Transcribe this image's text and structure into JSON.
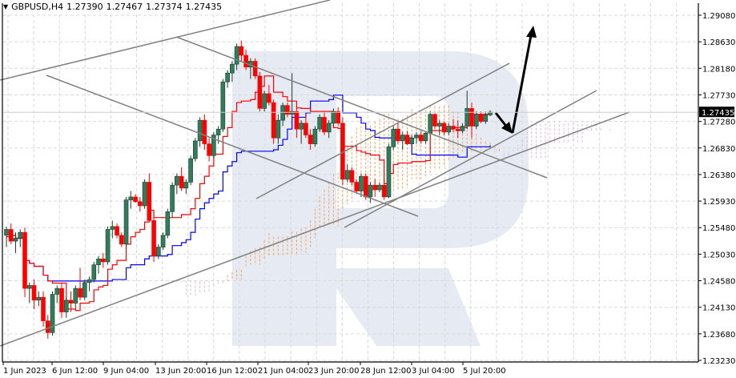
{
  "header": {
    "symbol": "GBPUSD,H4",
    "open": "1.27390",
    "high": "1.27467",
    "low": "1.27374",
    "close": "1.27435"
  },
  "colors": {
    "bull": "#2f7d5a",
    "bull_outline": "#1e3d30",
    "bear": "#ff0000",
    "tenkan": "#ff0000",
    "kijun": "#0000ff",
    "cloud_a": "#f4a460",
    "cloud_b": "#d8bfd8",
    "trendline": "#808080",
    "arrow": "#000000",
    "grid": "#d9d9d9",
    "watermark": "#e6ebf3",
    "current_price_bg": "#000000"
  },
  "chart_data": {
    "type": "candlestick",
    "title": "GBPUSD,H4",
    "subtitle": "1.27390 1.27467 1.27374 1.27435",
    "xlabel": "",
    "ylabel": "",
    "ylim": [
      1.2323,
      1.2908
    ],
    "grid": true,
    "y_ticks": [
      "1.29080",
      "1.28630",
      "1.28180",
      "1.27730",
      "1.27280",
      "1.26830",
      "1.26380",
      "1.25930",
      "1.25480",
      "1.25030",
      "1.24580",
      "1.24130",
      "1.23680",
      "1.23230"
    ],
    "x_ticks": [
      "1 Jun 2023",
      "6 Jun 12:00",
      "9 Jun 04:00",
      "13 Jun 20:00",
      "16 Jun 12:00",
      "21 Jun 04:00",
      "23 Jun 20:00",
      "28 Jun 12:00",
      "3 Jul 04:00",
      "5 Jul 20:00"
    ],
    "current_price": "1.27435",
    "indicators": [
      "Ichimoku Kinko Hyo (Tenkan-sen red, Kijun-sen blue, Kumo cloud)"
    ],
    "annotations": [
      "Ascending channel trendlines",
      "Descending channel trendlines",
      "Arrow down to cloud support ~1.2710",
      "Arrow up target ~1.2910"
    ],
    "candles": [
      [
        1.2535,
        1.255,
        1.2515,
        1.2545
      ],
      [
        1.2545,
        1.2555,
        1.252,
        1.2525
      ],
      [
        1.2525,
        1.254,
        1.2505,
        1.253
      ],
      [
        1.253,
        1.2545,
        1.2515,
        1.254
      ],
      [
        1.254,
        1.2548,
        1.243,
        1.2445
      ],
      [
        1.2445,
        1.2455,
        1.242,
        1.245
      ],
      [
        1.245,
        1.246,
        1.241,
        1.2425
      ],
      [
        1.2425,
        1.244,
        1.2415,
        1.243
      ],
      [
        1.243,
        1.244,
        1.238,
        1.239
      ],
      [
        1.239,
        1.24,
        1.236,
        1.237
      ],
      [
        1.237,
        1.244,
        1.2365,
        1.2435
      ],
      [
        1.2435,
        1.245,
        1.242,
        1.2445
      ],
      [
        1.2445,
        1.2455,
        1.2395,
        1.2405
      ],
      [
        1.2405,
        1.243,
        1.2395,
        1.2425
      ],
      [
        1.2425,
        1.244,
        1.2405,
        1.242
      ],
      [
        1.242,
        1.245,
        1.241,
        1.2445
      ],
      [
        1.2445,
        1.248,
        1.2425,
        1.243
      ],
      [
        1.243,
        1.246,
        1.2425,
        1.2455
      ],
      [
        1.2455,
        1.2465,
        1.244,
        1.246
      ],
      [
        1.246,
        1.249,
        1.2455,
        1.2485
      ],
      [
        1.2485,
        1.25,
        1.247,
        1.2495
      ],
      [
        1.2495,
        1.2505,
        1.248,
        1.249
      ],
      [
        1.249,
        1.255,
        1.2485,
        1.2545
      ],
      [
        1.2545,
        1.256,
        1.253,
        1.255
      ],
      [
        1.255,
        1.2555,
        1.253,
        1.2535
      ],
      [
        1.2535,
        1.254,
        1.2515,
        1.252
      ],
      [
        1.252,
        1.26,
        1.2515,
        1.2595
      ],
      [
        1.2595,
        1.261,
        1.258,
        1.26
      ],
      [
        1.26,
        1.2605,
        1.259,
        1.2592
      ],
      [
        1.2592,
        1.26,
        1.2575,
        1.2585
      ],
      [
        1.2585,
        1.263,
        1.258,
        1.2625
      ],
      [
        1.2625,
        1.264,
        1.2595,
        1.256
      ],
      [
        1.256,
        1.2575,
        1.249,
        1.25
      ],
      [
        1.25,
        1.252,
        1.2495,
        1.2515
      ],
      [
        1.2515,
        1.254,
        1.251,
        1.2535
      ],
      [
        1.2535,
        1.258,
        1.253,
        1.2575
      ],
      [
        1.2575,
        1.2625,
        1.2565,
        1.262
      ],
      [
        1.262,
        1.264,
        1.2605,
        1.2635
      ],
      [
        1.2635,
        1.265,
        1.261,
        1.2615
      ],
      [
        1.2615,
        1.263,
        1.2605,
        1.2625
      ],
      [
        1.2625,
        1.267,
        1.262,
        1.2665
      ],
      [
        1.2665,
        1.27,
        1.266,
        1.2695
      ],
      [
        1.2695,
        1.2735,
        1.2685,
        1.273
      ],
      [
        1.273,
        1.274,
        1.268,
        1.269
      ],
      [
        1.269,
        1.27,
        1.266,
        1.267
      ],
      [
        1.267,
        1.271,
        1.2665,
        1.2705
      ],
      [
        1.2705,
        1.272,
        1.269,
        1.2715
      ],
      [
        1.2715,
        1.28,
        1.271,
        1.2795
      ],
      [
        1.2795,
        1.2815,
        1.2785,
        1.281
      ],
      [
        1.281,
        1.283,
        1.2795,
        1.2825
      ],
      [
        1.2825,
        1.286,
        1.2815,
        1.2855
      ],
      [
        1.2855,
        1.2865,
        1.283,
        1.284
      ],
      [
        1.284,
        1.285,
        1.2815,
        1.282
      ],
      [
        1.282,
        1.2835,
        1.28,
        1.283
      ],
      [
        1.283,
        1.2835,
        1.28,
        1.2805
      ],
      [
        1.2805,
        1.2812,
        1.2745,
        1.275
      ],
      [
        1.275,
        1.278,
        1.2745,
        1.2775
      ],
      [
        1.2775,
        1.279,
        1.2755,
        1.276
      ],
      [
        1.276,
        1.2765,
        1.269,
        1.27
      ],
      [
        1.27,
        1.274,
        1.269,
        1.273
      ],
      [
        1.273,
        1.276,
        1.272,
        1.2755
      ],
      [
        1.2755,
        1.276,
        1.2735,
        1.274
      ],
      [
        1.274,
        1.281,
        1.2735,
        1.2745
      ],
      [
        1.2745,
        1.2755,
        1.27,
        1.2715
      ],
      [
        1.2715,
        1.273,
        1.269,
        1.2725
      ],
      [
        1.2725,
        1.274,
        1.27,
        1.2705
      ],
      [
        1.2705,
        1.2715,
        1.268,
        1.269
      ],
      [
        1.269,
        1.272,
        1.2685,
        1.2715
      ],
      [
        1.2715,
        1.274,
        1.271,
        1.2735
      ],
      [
        1.2735,
        1.2745,
        1.2705,
        1.271
      ],
      [
        1.271,
        1.273,
        1.27,
        1.2725
      ],
      [
        1.2725,
        1.275,
        1.272,
        1.2745
      ],
      [
        1.2745,
        1.2752,
        1.272,
        1.2725
      ],
      [
        1.2725,
        1.2735,
        1.262,
        1.263
      ],
      [
        1.263,
        1.2655,
        1.2625,
        1.2645
      ],
      [
        1.2645,
        1.265,
        1.262,
        1.2625
      ],
      [
        1.2625,
        1.263,
        1.2605,
        1.261
      ],
      [
        1.261,
        1.264,
        1.26,
        1.2635
      ],
      [
        1.2635,
        1.264,
        1.2595,
        1.26
      ],
      [
        1.26,
        1.2625,
        1.259,
        1.262
      ],
      [
        1.262,
        1.263,
        1.26,
        1.2612
      ],
      [
        1.2612,
        1.2625,
        1.2608,
        1.262
      ],
      [
        1.262,
        1.263,
        1.2595,
        1.26
      ],
      [
        1.26,
        1.269,
        1.2598,
        1.2685
      ],
      [
        1.2685,
        1.272,
        1.268,
        1.2715
      ],
      [
        1.2715,
        1.2725,
        1.269,
        1.2695
      ],
      [
        1.2695,
        1.271,
        1.268,
        1.2705
      ],
      [
        1.2705,
        1.2712,
        1.2688,
        1.269
      ],
      [
        1.269,
        1.2705,
        1.2685,
        1.27
      ],
      [
        1.27,
        1.271,
        1.269,
        1.2705
      ],
      [
        1.2705,
        1.2712,
        1.269,
        1.2695
      ],
      [
        1.2695,
        1.271,
        1.269,
        1.2708
      ],
      [
        1.2708,
        1.2745,
        1.2705,
        1.274
      ],
      [
        1.274,
        1.2742,
        1.2715,
        1.272
      ],
      [
        1.272,
        1.273,
        1.2705,
        1.2725
      ],
      [
        1.2725,
        1.2728,
        1.2705,
        1.271
      ],
      [
        1.271,
        1.2725,
        1.2705,
        1.272
      ],
      [
        1.272,
        1.2732,
        1.271,
        1.2715
      ],
      [
        1.2715,
        1.273,
        1.27,
        1.2712
      ],
      [
        1.2712,
        1.2725,
        1.2708,
        1.272
      ],
      [
        1.272,
        1.278,
        1.2715,
        1.275
      ],
      [
        1.275,
        1.276,
        1.27,
        1.272
      ],
      [
        1.272,
        1.2745,
        1.2715,
        1.274
      ],
      [
        1.274,
        1.2745,
        1.2725,
        1.2728
      ],
      [
        1.2728,
        1.2745,
        1.2724,
        1.2739
      ],
      [
        1.2739,
        1.2747,
        1.2737,
        1.2744
      ]
    ]
  }
}
